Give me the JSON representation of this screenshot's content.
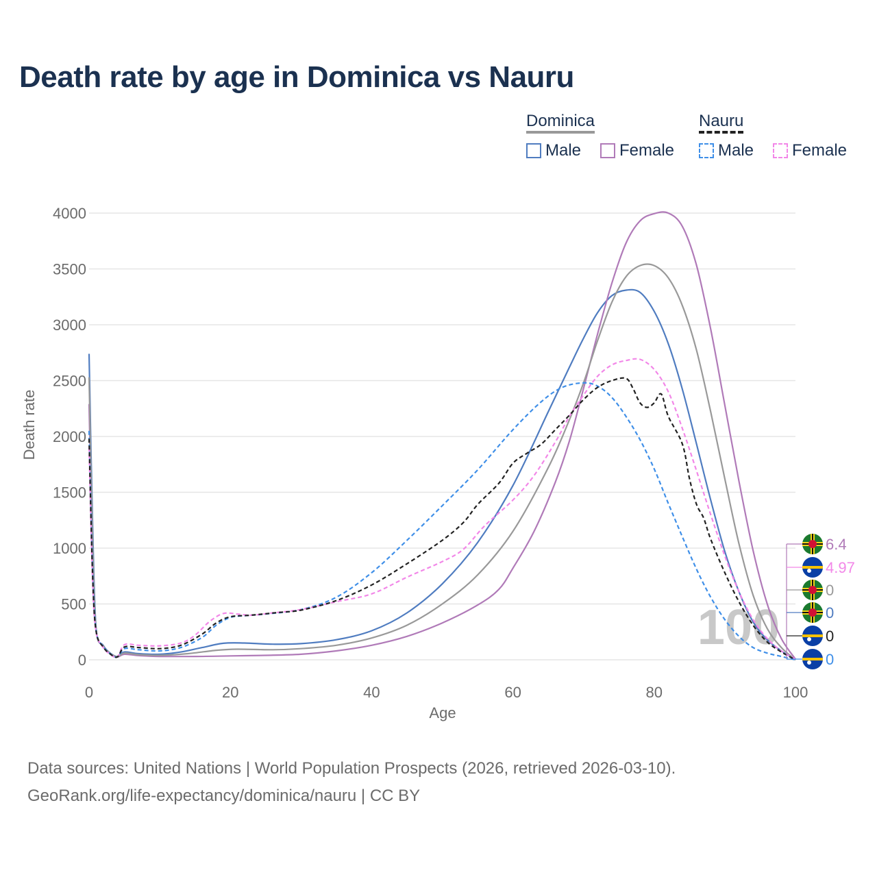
{
  "title": "Death rate by age in Dominica vs Nauru",
  "legend": {
    "groups": [
      {
        "name": "Dominica",
        "line_color": "#999999",
        "dashed": false,
        "items": [
          {
            "label": "Male",
            "color": "#4f7cc0"
          },
          {
            "label": "Female",
            "color": "#b07ab8"
          }
        ]
      },
      {
        "name": "Nauru",
        "line_color": "#222222",
        "dashed": true,
        "items": [
          {
            "label": "Male",
            "color": "#3f8fe8"
          },
          {
            "label": "Female",
            "color": "#f287e8"
          }
        ]
      }
    ]
  },
  "watermark": "100",
  "end_labels": [
    {
      "country": "Dominica",
      "value": "6.4",
      "color": "#b07ab8"
    },
    {
      "country": "Nauru",
      "value": "4.97",
      "color": "#f287e8"
    },
    {
      "country": "Dominica",
      "value": "0",
      "color": "#999999"
    },
    {
      "country": "Dominica",
      "value": "0",
      "color": "#4f7cc0"
    },
    {
      "country": "Nauru",
      "value": "0",
      "color": "#222222"
    },
    {
      "country": "Nauru",
      "value": "0",
      "color": "#3f8fe8"
    }
  ],
  "footer": {
    "line1": "Data sources: United Nations | World Population Prospects (2026, retrieved 2026-03-10).",
    "line2": "GeoRank.org/life-expectancy/dominica/nauru | CC BY"
  },
  "chart_data": {
    "type": "line",
    "xlabel": "Age",
    "ylabel": "Death rate",
    "xlim": [
      0,
      100
    ],
    "ylim": [
      0,
      4000
    ],
    "xticks": [
      0,
      20,
      40,
      60,
      80,
      100
    ],
    "yticks": [
      0,
      500,
      1000,
      1500,
      2000,
      2500,
      3000,
      3500,
      4000
    ],
    "grid": true,
    "series": [
      {
        "name": "Dominica Male",
        "color": "#4f7cc0",
        "dashed": false,
        "points": [
          [
            0,
            2740
          ],
          [
            0.5,
            1200
          ],
          [
            1,
            280
          ],
          [
            2,
            130
          ],
          [
            3,
            60
          ],
          [
            4,
            30
          ],
          [
            5,
            70
          ],
          [
            7,
            55
          ],
          [
            10,
            50
          ],
          [
            13,
            70
          ],
          [
            16,
            110
          ],
          [
            19,
            148
          ],
          [
            22,
            150
          ],
          [
            26,
            140
          ],
          [
            30,
            145
          ],
          [
            35,
            180
          ],
          [
            40,
            260
          ],
          [
            45,
            420
          ],
          [
            50,
            680
          ],
          [
            55,
            1050
          ],
          [
            60,
            1560
          ],
          [
            65,
            2220
          ],
          [
            68,
            2620
          ],
          [
            70,
            2880
          ],
          [
            72,
            3110
          ],
          [
            74,
            3260
          ],
          [
            76,
            3310
          ],
          [
            78,
            3290
          ],
          [
            80,
            3120
          ],
          [
            82,
            2830
          ],
          [
            84,
            2420
          ],
          [
            86,
            1930
          ],
          [
            88,
            1430
          ],
          [
            90,
            970
          ],
          [
            92,
            610
          ],
          [
            94,
            340
          ],
          [
            96,
            180
          ],
          [
            98,
            80
          ],
          [
            100,
            0
          ]
        ]
      },
      {
        "name": "Dominica Female",
        "color": "#b07ab8",
        "dashed": false,
        "points": [
          [
            0,
            2290
          ],
          [
            0.5,
            900
          ],
          [
            1,
            260
          ],
          [
            2,
            120
          ],
          [
            3,
            55
          ],
          [
            4,
            25
          ],
          [
            5,
            50
          ],
          [
            7,
            38
          ],
          [
            10,
            30
          ],
          [
            15,
            30
          ],
          [
            20,
            35
          ],
          [
            25,
            40
          ],
          [
            30,
            50
          ],
          [
            35,
            80
          ],
          [
            40,
            130
          ],
          [
            45,
            210
          ],
          [
            50,
            330
          ],
          [
            55,
            490
          ],
          [
            58,
            630
          ],
          [
            60,
            820
          ],
          [
            63,
            1150
          ],
          [
            66,
            1590
          ],
          [
            68,
            1960
          ],
          [
            70,
            2430
          ],
          [
            72,
            2920
          ],
          [
            74,
            3370
          ],
          [
            76,
            3730
          ],
          [
            78,
            3930
          ],
          [
            80,
            3995
          ],
          [
            82,
            4000
          ],
          [
            84,
            3880
          ],
          [
            86,
            3530
          ],
          [
            88,
            2960
          ],
          [
            90,
            2280
          ],
          [
            92,
            1600
          ],
          [
            94,
            980
          ],
          [
            96,
            500
          ],
          [
            98,
            190
          ],
          [
            100,
            6.4
          ]
        ]
      },
      {
        "name": "Dominica",
        "color": "#999999",
        "dashed": false,
        "points": [
          [
            0,
            2530
          ],
          [
            0.5,
            1050
          ],
          [
            1,
            270
          ],
          [
            2,
            125
          ],
          [
            3,
            58
          ],
          [
            4,
            28
          ],
          [
            5,
            60
          ],
          [
            7,
            46
          ],
          [
            10,
            40
          ],
          [
            14,
            55
          ],
          [
            18,
            85
          ],
          [
            21,
            95
          ],
          [
            26,
            90
          ],
          [
            30,
            100
          ],
          [
            35,
            130
          ],
          [
            40,
            195
          ],
          [
            45,
            310
          ],
          [
            50,
            500
          ],
          [
            55,
            760
          ],
          [
            60,
            1150
          ],
          [
            65,
            1720
          ],
          [
            68,
            2150
          ],
          [
            70,
            2480
          ],
          [
            72,
            2860
          ],
          [
            74,
            3200
          ],
          [
            76,
            3430
          ],
          [
            78,
            3530
          ],
          [
            80,
            3530
          ],
          [
            82,
            3420
          ],
          [
            84,
            3170
          ],
          [
            86,
            2770
          ],
          [
            88,
            2220
          ],
          [
            90,
            1620
          ],
          [
            92,
            1040
          ],
          [
            94,
            580
          ],
          [
            96,
            280
          ],
          [
            98,
            110
          ],
          [
            100,
            0
          ]
        ]
      },
      {
        "name": "Nauru Male",
        "color": "#3f8fe8",
        "dashed": true,
        "points": [
          [
            0,
            2050
          ],
          [
            0.5,
            800
          ],
          [
            1,
            260
          ],
          [
            2,
            120
          ],
          [
            3,
            55
          ],
          [
            4,
            25
          ],
          [
            5,
            100
          ],
          [
            7,
            90
          ],
          [
            10,
            80
          ],
          [
            13,
            110
          ],
          [
            16,
            200
          ],
          [
            18,
            310
          ],
          [
            20,
            380
          ],
          [
            22,
            395
          ],
          [
            25,
            410
          ],
          [
            30,
            450
          ],
          [
            35,
            560
          ],
          [
            40,
            780
          ],
          [
            45,
            1070
          ],
          [
            50,
            1380
          ],
          [
            55,
            1700
          ],
          [
            60,
            2060
          ],
          [
            64,
            2310
          ],
          [
            67,
            2440
          ],
          [
            70,
            2480
          ],
          [
            72,
            2450
          ],
          [
            74,
            2350
          ],
          [
            76,
            2180
          ],
          [
            78,
            1970
          ],
          [
            80,
            1710
          ],
          [
            82,
            1400
          ],
          [
            84,
            1100
          ],
          [
            86,
            810
          ],
          [
            88,
            560
          ],
          [
            90,
            360
          ],
          [
            92,
            210
          ],
          [
            94,
            110
          ],
          [
            96,
            60
          ],
          [
            98,
            30
          ],
          [
            100,
            0
          ]
        ]
      },
      {
        "name": "Nauru Female",
        "color": "#f287e8",
        "dashed": true,
        "points": [
          [
            0,
            1900
          ],
          [
            0.5,
            700
          ],
          [
            1,
            250
          ],
          [
            2,
            110
          ],
          [
            3,
            50
          ],
          [
            4,
            25
          ],
          [
            5,
            135
          ],
          [
            7,
            130
          ],
          [
            10,
            125
          ],
          [
            13,
            150
          ],
          [
            15,
            220
          ],
          [
            17,
            340
          ],
          [
            19,
            415
          ],
          [
            21,
            410
          ],
          [
            23,
            400
          ],
          [
            26,
            420
          ],
          [
            30,
            450
          ],
          [
            35,
            520
          ],
          [
            40,
            590
          ],
          [
            45,
            740
          ],
          [
            50,
            880
          ],
          [
            53,
            990
          ],
          [
            56,
            1200
          ],
          [
            60,
            1430
          ],
          [
            63,
            1650
          ],
          [
            66,
            1950
          ],
          [
            68,
            2180
          ],
          [
            70,
            2370
          ],
          [
            72,
            2540
          ],
          [
            74,
            2640
          ],
          [
            76,
            2680
          ],
          [
            78,
            2690
          ],
          [
            80,
            2600
          ],
          [
            82,
            2400
          ],
          [
            84,
            2070
          ],
          [
            86,
            1690
          ],
          [
            88,
            1300
          ],
          [
            90,
            930
          ],
          [
            92,
            610
          ],
          [
            94,
            360
          ],
          [
            96,
            190
          ],
          [
            98,
            80
          ],
          [
            100,
            4.97
          ]
        ]
      },
      {
        "name": "Nauru",
        "color": "#222222",
        "dashed": true,
        "points": [
          [
            0,
            1980
          ],
          [
            0.5,
            750
          ],
          [
            1,
            255
          ],
          [
            2,
            115
          ],
          [
            3,
            52
          ],
          [
            4,
            25
          ],
          [
            5,
            115
          ],
          [
            7,
            110
          ],
          [
            10,
            100
          ],
          [
            13,
            130
          ],
          [
            16,
            230
          ],
          [
            18,
            330
          ],
          [
            20,
            385
          ],
          [
            23,
            400
          ],
          [
            27,
            425
          ],
          [
            30,
            445
          ],
          [
            35,
            530
          ],
          [
            40,
            670
          ],
          [
            45,
            860
          ],
          [
            50,
            1070
          ],
          [
            53,
            1230
          ],
          [
            55,
            1390
          ],
          [
            58,
            1580
          ],
          [
            60,
            1760
          ],
          [
            62,
            1850
          ],
          [
            64,
            1930
          ],
          [
            66,
            2060
          ],
          [
            68,
            2190
          ],
          [
            70,
            2330
          ],
          [
            72,
            2440
          ],
          [
            74,
            2500
          ],
          [
            76,
            2520
          ],
          [
            77,
            2430
          ],
          [
            78,
            2300
          ],
          [
            79,
            2260
          ],
          [
            80,
            2300
          ],
          [
            81,
            2380
          ],
          [
            82,
            2180
          ],
          [
            84,
            1930
          ],
          [
            85,
            1620
          ],
          [
            86,
            1390
          ],
          [
            87,
            1270
          ],
          [
            88,
            1080
          ],
          [
            90,
            780
          ],
          [
            92,
            520
          ],
          [
            94,
            310
          ],
          [
            96,
            160
          ],
          [
            98,
            70
          ],
          [
            100,
            0
          ]
        ]
      }
    ]
  }
}
